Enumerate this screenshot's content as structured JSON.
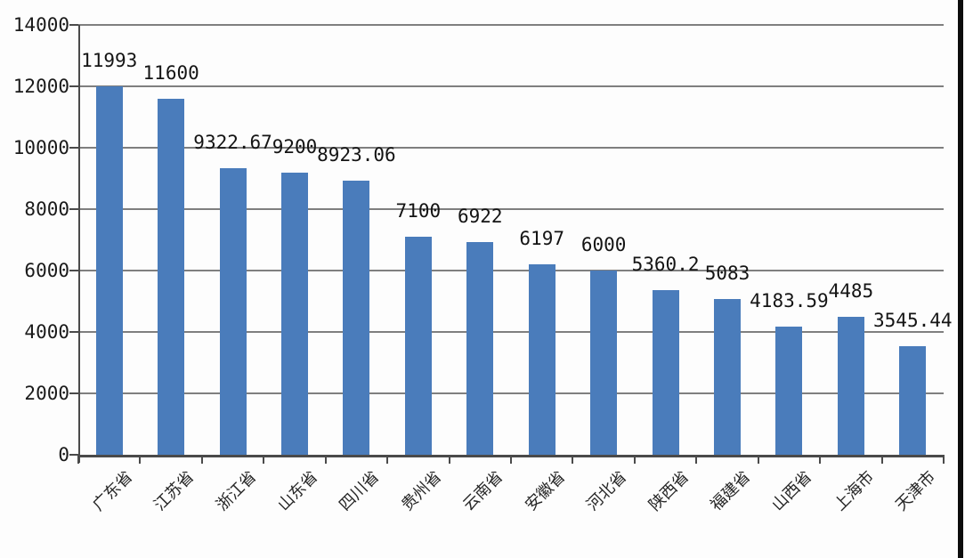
{
  "chart_data": {
    "type": "bar",
    "title": "",
    "categories": [
      "广东省",
      "江苏省",
      "浙江省",
      "山东省",
      "四川省",
      "贵州省",
      "云南省",
      "安徽省",
      "河北省",
      "陕西省",
      "福建省",
      "山西省",
      "上海市",
      "天津市"
    ],
    "values": [
      11993,
      11600,
      9322.67,
      9200,
      8923.06,
      7100,
      6922,
      6197,
      6000,
      5360.2,
      5083,
      4183.59,
      4485,
      3545.44
    ],
    "data_labels": [
      "11993",
      "11600",
      "9322.67",
      "9200",
      "8923.06",
      "7100",
      "6922",
      "6197",
      "6000",
      "5360.2",
      "5083",
      "4183.59",
      "4485",
      "3545.44"
    ],
    "y_ticks": [
      "0",
      "2000",
      "4000",
      "6000",
      "8000",
      "10000",
      "12000",
      "14000"
    ],
    "ylim": [
      0,
      14000
    ],
    "xlabel": "",
    "ylabel": "",
    "grid": true,
    "legend_position": "none",
    "colors": {
      "bar": "#4a7cbb",
      "gridline": "#7f7f7f",
      "axis": "#4a4a4a",
      "tick": "#4a4a4a",
      "text": "#1a1a1a",
      "background": "#fdfdfd",
      "edge_strip": "#0c0c0c"
    }
  }
}
